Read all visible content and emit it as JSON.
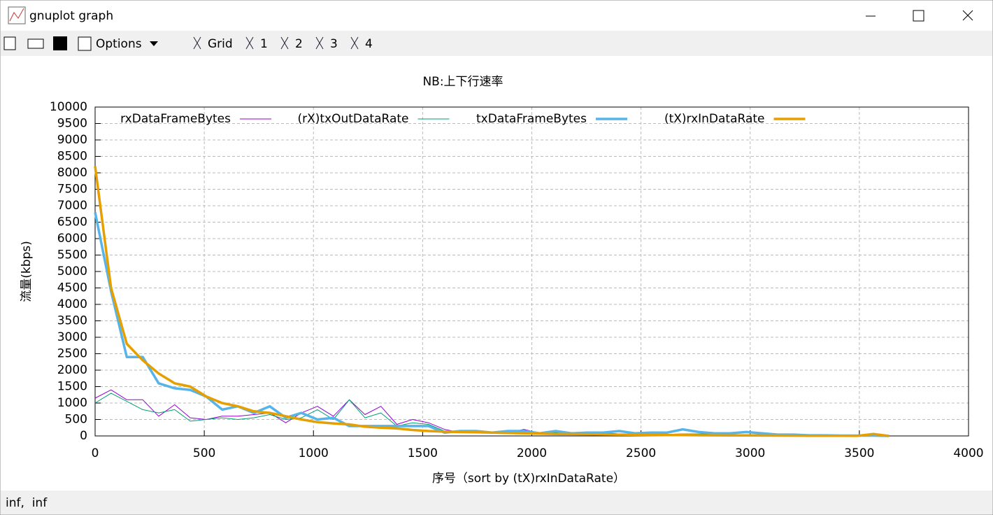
{
  "window": {
    "title": "gnuplot graph"
  },
  "toolbar": {
    "options": "Options",
    "items": [
      "Grid",
      "1",
      "2",
      "3",
      "4"
    ]
  },
  "status": "inf,  inf",
  "chart_data": {
    "type": "line",
    "title": "NB:上下行速率",
    "x_label": "序号（sort by (tX)rxInDataRate）",
    "y_label": "流量(kbps)",
    "x": [
      0,
      73,
      145,
      218,
      291,
      364,
      436,
      509,
      582,
      654,
      727,
      800,
      873,
      945,
      1018,
      1091,
      1164,
      1236,
      1309,
      1382,
      1454,
      1527,
      1600,
      1673,
      1745,
      1818,
      1891,
      1964,
      2036,
      2109,
      2182,
      2255,
      2327,
      2400,
      2473,
      2545,
      2618,
      2691,
      2764,
      2836,
      2909,
      2982,
      3055,
      3127,
      3200,
      3273,
      3345,
      3418,
      3491,
      3564,
      3636
    ],
    "series": [
      {
        "name": "rxDataFrameBytes",
        "color": "#9400d3",
        "width": 1,
        "values": [
          1150,
          1400,
          1100,
          1100,
          600,
          950,
          550,
          500,
          600,
          600,
          650,
          700,
          400,
          700,
          900,
          600,
          1100,
          650,
          900,
          350,
          500,
          400,
          200,
          100,
          150,
          80,
          100,
          200,
          80,
          100,
          80,
          80,
          100,
          60,
          60,
          60,
          50,
          60,
          60,
          60,
          40,
          40,
          40,
          30,
          30,
          20,
          20,
          10,
          10,
          10,
          0
        ]
      },
      {
        "name": "(rX)txOutDataRate",
        "color": "#009e73",
        "width": 1,
        "values": [
          1000,
          1300,
          1050,
          800,
          700,
          800,
          450,
          500,
          550,
          500,
          550,
          650,
          500,
          550,
          800,
          500,
          1100,
          550,
          700,
          300,
          400,
          350,
          150,
          100,
          150,
          80,
          100,
          150,
          80,
          100,
          80,
          80,
          100,
          60,
          60,
          60,
          50,
          60,
          60,
          60,
          40,
          40,
          40,
          30,
          30,
          20,
          20,
          10,
          10,
          10,
          0
        ]
      },
      {
        "name": "txDataFrameBytes",
        "color": "#56b4e9",
        "width": 3.5,
        "values": [
          6800,
          4400,
          2400,
          2400,
          1600,
          1450,
          1400,
          1200,
          800,
          900,
          700,
          900,
          550,
          700,
          500,
          550,
          300,
          300,
          300,
          300,
          300,
          300,
          100,
          150,
          150,
          100,
          150,
          150,
          80,
          150,
          80,
          100,
          100,
          150,
          80,
          100,
          100,
          200,
          120,
          80,
          80,
          120,
          80,
          40,
          40,
          20,
          20,
          10,
          10,
          10,
          0
        ]
      },
      {
        "name": "(tX)rxInDataRate",
        "color": "#e69f00",
        "width": 3.5,
        "values": [
          8200,
          4500,
          2800,
          2300,
          1900,
          1600,
          1500,
          1200,
          1000,
          900,
          750,
          700,
          600,
          500,
          420,
          380,
          350,
          280,
          250,
          230,
          180,
          150,
          130,
          120,
          110,
          100,
          90,
          80,
          70,
          60,
          55,
          50,
          45,
          40,
          35,
          30,
          28,
          25,
          22,
          20,
          18,
          15,
          12,
          10,
          8,
          6,
          5,
          4,
          3,
          60,
          0
        ]
      }
    ],
    "xlim": [
      0,
      4000
    ],
    "xticks": [
      0,
      500,
      1000,
      1500,
      2000,
      2500,
      3000,
      3500,
      4000
    ],
    "ylim": [
      0,
      10000
    ],
    "yticks": [
      0,
      500,
      1000,
      1500,
      2000,
      2500,
      3000,
      3500,
      4000,
      4500,
      5000,
      5500,
      6000,
      6500,
      7000,
      7500,
      8000,
      8500,
      9000,
      9500,
      10000
    ],
    "grid": true,
    "legend": "top"
  }
}
